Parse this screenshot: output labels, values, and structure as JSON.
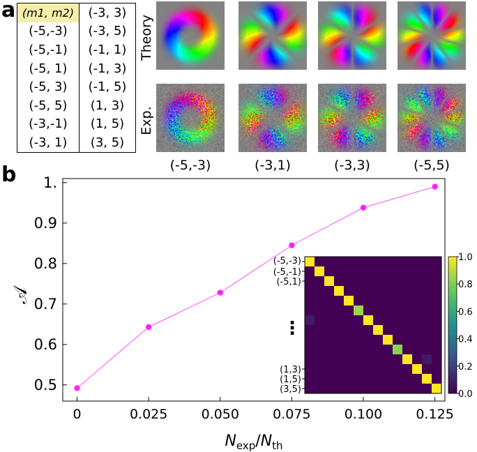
{
  "panel_a": {
    "label": "a",
    "table": {
      "header": [
        "(m1, m2)",
        "(-3, 3)"
      ],
      "rows": [
        [
          "(-5,-3)",
          "(-3, 5)"
        ],
        [
          "(-5,-1)",
          "(-1, 1)"
        ],
        [
          "(-5, 1)",
          "(-1, 3)"
        ],
        [
          "(-5, 3)",
          "(-1, 5)"
        ],
        [
          "(-5, 5)",
          "(1, 3)"
        ],
        [
          "(-3,-1)",
          "(1, 5)"
        ],
        [
          "(-3, 1)",
          "(3, 5)"
        ]
      ]
    },
    "row_labels": [
      "Theory",
      "Exp."
    ],
    "column_labels": [
      "(-5,-3)",
      "(-3,1)",
      "(-3,3)",
      "(-5,5)"
    ],
    "tile_lobes": [
      2,
      4,
      6,
      10
    ]
  },
  "panel_b": {
    "label": "b",
    "inset_ticks": [
      "(-5,-3)",
      "(-5,-1)",
      "(-5,1)",
      "⋮",
      "(1,3)",
      "(1,5)",
      "(3,5)"
    ],
    "colorbar_ticks": [
      "0.0",
      "0.2",
      "0.4",
      "0.6",
      "0.8",
      "1.0"
    ]
  },
  "chart_data": {
    "type": "line",
    "x": [
      0,
      0.025,
      0.05,
      0.075,
      0.1,
      0.125
    ],
    "y": [
      0.492,
      0.643,
      0.728,
      0.845,
      0.938,
      0.99
    ],
    "x_tick_labels": [
      "0",
      "0.025",
      "0.050",
      "0.075",
      "0.100",
      "0.125"
    ],
    "y_tick_labels": [
      "0.5",
      "0.6",
      "0.7",
      "0.8",
      "0.9",
      "1."
    ],
    "y_ticks": [
      0.5,
      0.6,
      0.7,
      0.8,
      0.9,
      1.0
    ],
    "xlim": [
      -0.005,
      0.1285
    ],
    "ylim": [
      0.46,
      1.01
    ],
    "xlabel": "Nexp/Nth",
    "ylabel": "𝒜",
    "color": "#ff22ff",
    "inset_heatmap": {
      "n": 14,
      "diagonal": [
        1,
        1,
        1,
        1,
        1,
        0.85,
        1,
        1,
        1,
        0.82,
        1,
        1,
        1,
        1
      ],
      "offdiagonal": [
        [
          6,
          0,
          0.08
        ],
        [
          10,
          12,
          0.07
        ]
      ],
      "colorbar_range": [
        0,
        1
      ]
    }
  }
}
